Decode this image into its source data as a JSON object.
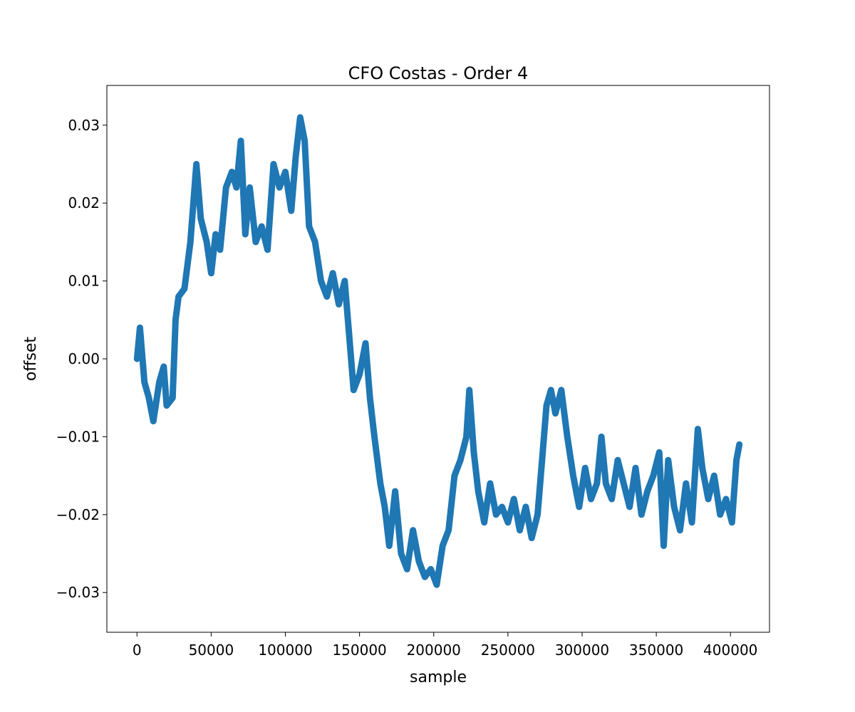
{
  "chart_data": {
    "type": "line",
    "title": "CFO Costas - Order 4",
    "x_label": "sample",
    "y_label": "offset",
    "color": "#1f77b4",
    "x": [
      0,
      2000,
      5000,
      8000,
      11000,
      15000,
      18000,
      20000,
      24000,
      26000,
      28000,
      32000,
      36000,
      40000,
      43000,
      47000,
      50000,
      53000,
      56000,
      60000,
      64000,
      67000,
      70000,
      73000,
      76000,
      80000,
      84000,
      88000,
      92000,
      96000,
      100000,
      104000,
      107000,
      110000,
      113000,
      116000,
      120000,
      124000,
      128000,
      132000,
      136000,
      140000,
      143000,
      146000,
      150000,
      154000,
      157000,
      160000,
      164000,
      167000,
      170000,
      174000,
      178000,
      182000,
      186000,
      190000,
      194000,
      198000,
      202000,
      206000,
      210000,
      214000,
      218000,
      222000,
      224000,
      227000,
      230000,
      234000,
      238000,
      242000,
      246000,
      250000,
      254000,
      258000,
      262000,
      266000,
      270000,
      273000,
      276000,
      279000,
      282000,
      286000,
      290000,
      294000,
      298000,
      302000,
      306000,
      310000,
      313000,
      316000,
      320000,
      324000,
      328000,
      332000,
      336000,
      340000,
      344000,
      348000,
      352000,
      355000,
      358000,
      362000,
      366000,
      370000,
      374000,
      378000,
      381000,
      385000,
      389000,
      393000,
      397000,
      401000,
      404000,
      406000
    ],
    "values": [
      0.0,
      0.004,
      -0.003,
      -0.005,
      -0.008,
      -0.003,
      -0.001,
      -0.006,
      -0.005,
      0.005,
      0.008,
      0.009,
      0.015,
      0.025,
      0.018,
      0.015,
      0.011,
      0.016,
      0.014,
      0.022,
      0.024,
      0.022,
      0.028,
      0.016,
      0.022,
      0.015,
      0.017,
      0.014,
      0.025,
      0.022,
      0.024,
      0.019,
      0.026,
      0.031,
      0.028,
      0.017,
      0.015,
      0.01,
      0.008,
      0.011,
      0.007,
      0.01,
      0.003,
      -0.004,
      -0.002,
      0.002,
      -0.005,
      -0.01,
      -0.016,
      -0.019,
      -0.024,
      -0.017,
      -0.025,
      -0.027,
      -0.022,
      -0.026,
      -0.028,
      -0.027,
      -0.029,
      -0.024,
      -0.022,
      -0.015,
      -0.013,
      -0.01,
      -0.004,
      -0.012,
      -0.017,
      -0.021,
      -0.016,
      -0.02,
      -0.019,
      -0.021,
      -0.018,
      -0.022,
      -0.019,
      -0.023,
      -0.02,
      -0.013,
      -0.006,
      -0.004,
      -0.007,
      -0.004,
      -0.01,
      -0.015,
      -0.019,
      -0.014,
      -0.018,
      -0.016,
      -0.01,
      -0.016,
      -0.018,
      -0.013,
      -0.016,
      -0.019,
      -0.014,
      -0.02,
      -0.017,
      -0.015,
      -0.012,
      -0.024,
      -0.013,
      -0.019,
      -0.022,
      -0.016,
      -0.021,
      -0.009,
      -0.014,
      -0.018,
      -0.015,
      -0.02,
      -0.018,
      -0.021,
      -0.013,
      -0.011
    ],
    "xlim": [
      -20300,
      426300
    ],
    "xticks": [
      0,
      50000,
      100000,
      150000,
      200000,
      250000,
      300000,
      350000,
      400000
    ],
    "ylim": [
      -0.0351,
      0.0351
    ],
    "yticks": [
      {
        "value": -0.03,
        "label": "−0.03"
      },
      {
        "value": -0.02,
        "label": "−0.02"
      },
      {
        "value": -0.01,
        "label": "−0.01"
      },
      {
        "value": 0,
        "label": "0.00"
      },
      0.01,
      0.02,
      0.03
    ]
  }
}
